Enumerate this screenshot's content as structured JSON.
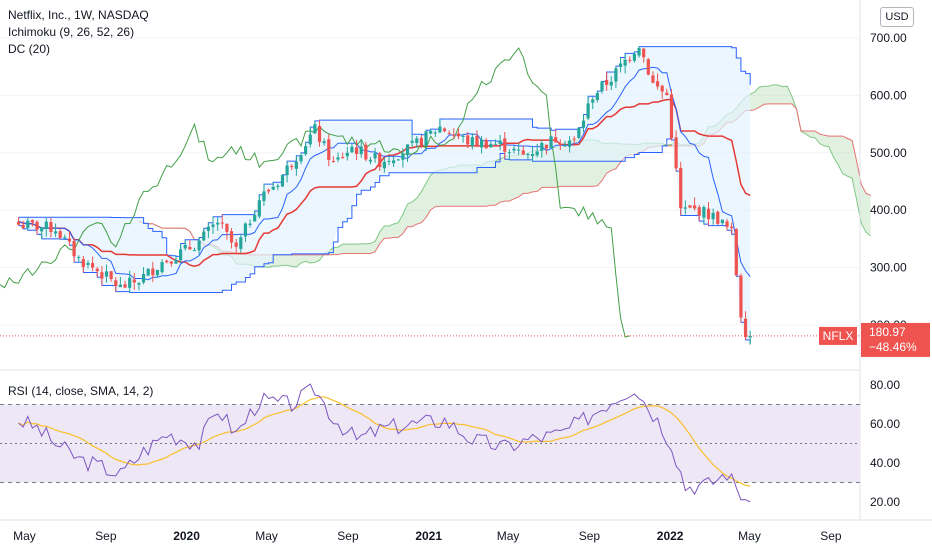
{
  "header": {
    "symbol_line": "Netflix, Inc., 1W, NASDAQ",
    "ichimoku_label": "Ichimoku (9, 26, 52, 26)",
    "dc_label": "DC (20)",
    "currency_button": "USD"
  },
  "rsi_header": "RSI (14, close, SMA, 14, 2)",
  "last_price": {
    "ticker": "NFLX",
    "price": "180.97",
    "change": "−48.46%",
    "value": 180.97
  },
  "colors": {
    "up": "#26a69a",
    "down": "#ef5350",
    "donchian": "#2962ff",
    "donchian_fill": "#e3f2fd",
    "kijun": "#e53935",
    "lagging": "#43a047",
    "rsi": "#7e57c2",
    "rsi_ma": "#f9c02a",
    "rsi_band": "#ede7f6"
  },
  "chart_data": [
    {
      "type": "candlestick",
      "title": "Netflix, Inc., 1W, NASDAQ",
      "ylim": [
        170,
        720
      ],
      "y_ticks": [
        "700.00",
        "600.00",
        "500.00",
        "400.00",
        "300.00",
        "200.00"
      ],
      "x_ticks": [
        "May",
        "Sep",
        "2020",
        "May",
        "Sep",
        "2021",
        "May",
        "Sep",
        "2022",
        "May",
        "Sep"
      ],
      "close_anchors": [
        {
          "x": "2019-04-22",
          "y": 375
        },
        {
          "x": "2019-06-17",
          "y": 368
        },
        {
          "x": "2019-07-22",
          "y": 315
        },
        {
          "x": "2019-08-19",
          "y": 295
        },
        {
          "x": "2019-09-23",
          "y": 265
        },
        {
          "x": "2019-10-21",
          "y": 278
        },
        {
          "x": "2019-11-25",
          "y": 310
        },
        {
          "x": "2019-12-30",
          "y": 330
        },
        {
          "x": "2020-01-20",
          "y": 345
        },
        {
          "x": "2020-02-17",
          "y": 380
        },
        {
          "x": "2020-03-16",
          "y": 330
        },
        {
          "x": "2020-04-20",
          "y": 420
        },
        {
          "x": "2020-05-18",
          "y": 450
        },
        {
          "x": "2020-07-13",
          "y": 540
        },
        {
          "x": "2020-08-10",
          "y": 480
        },
        {
          "x": "2020-09-07",
          "y": 510
        },
        {
          "x": "2020-10-19",
          "y": 485
        },
        {
          "x": "2020-12-07",
          "y": 510
        },
        {
          "x": "2021-01-18",
          "y": 545
        },
        {
          "x": "2021-03-01",
          "y": 520
        },
        {
          "x": "2021-04-19",
          "y": 515
        },
        {
          "x": "2021-05-24",
          "y": 495
        },
        {
          "x": "2021-07-12",
          "y": 525
        },
        {
          "x": "2021-08-09",
          "y": 520
        },
        {
          "x": "2021-09-06",
          "y": 600
        },
        {
          "x": "2021-10-04",
          "y": 630
        },
        {
          "x": "2021-11-15",
          "y": 690
        },
        {
          "x": "2021-12-06",
          "y": 620
        },
        {
          "x": "2021-12-27",
          "y": 600
        },
        {
          "x": "2022-01-17",
          "y": 400
        },
        {
          "x": "2022-02-14",
          "y": 400
        },
        {
          "x": "2022-03-14",
          "y": 385
        },
        {
          "x": "2022-04-04",
          "y": 360
        },
        {
          "x": "2022-04-18",
          "y": 220
        },
        {
          "x": "2022-04-25",
          "y": 190
        },
        {
          "x": "2022-05-02",
          "y": 180.97
        }
      ],
      "series": [
        {
          "name": "Donchian Channel (20)"
        },
        {
          "name": "Ichimoku Cloud"
        }
      ]
    },
    {
      "type": "line",
      "title": "RSI (14, close, SMA, 14, 2)",
      "ylim": [
        15,
        83
      ],
      "y_ticks": [
        "80.00",
        "60.00",
        "40.00",
        "20.00"
      ],
      "bands": [
        30,
        50,
        70
      ],
      "anchors": [
        {
          "x": "2019-04-22",
          "y": 62
        },
        {
          "x": "2019-05-20",
          "y": 58
        },
        {
          "x": "2019-06-17",
          "y": 50
        },
        {
          "x": "2019-07-22",
          "y": 42
        },
        {
          "x": "2019-08-26",
          "y": 38
        },
        {
          "x": "2019-09-23",
          "y": 34
        },
        {
          "x": "2019-10-28",
          "y": 46
        },
        {
          "x": "2019-12-02",
          "y": 55
        },
        {
          "x": "2020-01-20",
          "y": 50
        },
        {
          "x": "2020-02-17",
          "y": 68
        },
        {
          "x": "2020-03-16",
          "y": 55
        },
        {
          "x": "2020-04-20",
          "y": 72
        },
        {
          "x": "2020-06-08",
          "y": 70
        },
        {
          "x": "2020-07-13",
          "y": 78
        },
        {
          "x": "2020-08-10",
          "y": 63
        },
        {
          "x": "2020-09-14",
          "y": 52
        },
        {
          "x": "2020-10-26",
          "y": 58
        },
        {
          "x": "2020-12-07",
          "y": 60
        },
        {
          "x": "2021-01-25",
          "y": 62
        },
        {
          "x": "2021-03-08",
          "y": 52
        },
        {
          "x": "2021-04-26",
          "y": 48
        },
        {
          "x": "2021-05-31",
          "y": 52
        },
        {
          "x": "2021-07-19",
          "y": 55
        },
        {
          "x": "2021-08-23",
          "y": 62
        },
        {
          "x": "2021-10-04",
          "y": 72
        },
        {
          "x": "2021-11-08",
          "y": 79
        },
        {
          "x": "2021-12-13",
          "y": 62
        },
        {
          "x": "2022-01-03",
          "y": 50
        },
        {
          "x": "2022-01-24",
          "y": 28
        },
        {
          "x": "2022-02-28",
          "y": 29
        },
        {
          "x": "2022-03-28",
          "y": 35
        },
        {
          "x": "2022-04-18",
          "y": 24
        },
        {
          "x": "2022-05-02",
          "y": 20
        }
      ]
    }
  ]
}
